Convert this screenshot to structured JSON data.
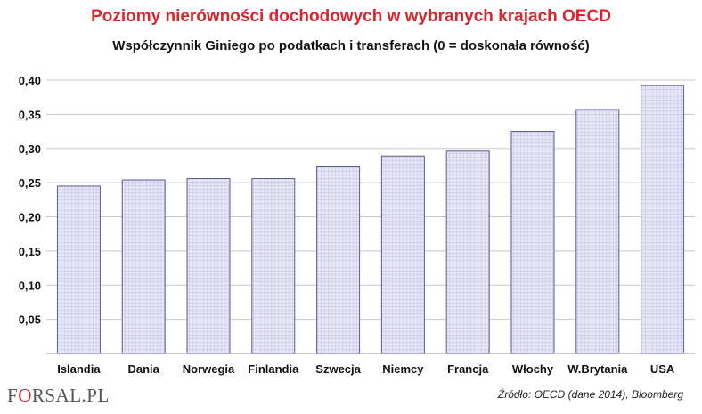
{
  "header": {
    "title": "Poziomy nierówności dochodowych w wybranych krajach OECD",
    "subtitle": "Współczynnik Giniego po podatkach i transferach (0 = doskonała równość)"
  },
  "footer": {
    "logo_prefix": "F",
    "logo_o": "O",
    "logo_suffix": "RSAL.PL",
    "source": "Źródło:  OECD (dane 2014), Bloomberg"
  },
  "colors": {
    "title": "#d9262c",
    "bar_fill": "#e6e6f7",
    "bar_stroke": "#5a5a8c",
    "bar_grid": "#b4b4dc",
    "gridline": "#c8c8c8"
  },
  "chart_data": {
    "type": "bar",
    "title": "Poziomy nierówności dochodowych w wybranych krajach OECD",
    "subtitle": "Współczynnik Giniego po podatkach i transferach (0 = doskonała równość)",
    "categories": [
      "Islandia",
      "Dania",
      "Norwegia",
      "Finlandia",
      "Szwecja",
      "Niemcy",
      "Francja",
      "Włochy",
      "W.Brytania",
      "USA"
    ],
    "values": [
      0.245,
      0.254,
      0.256,
      0.256,
      0.273,
      0.289,
      0.296,
      0.325,
      0.357,
      0.392
    ],
    "ylim": [
      0,
      0.4
    ],
    "yticks": [
      0.05,
      0.1,
      0.15,
      0.2,
      0.25,
      0.3,
      0.35,
      0.4
    ],
    "ytick_labels": [
      "0,05",
      "0,10",
      "0,15",
      "0,20",
      "0,25",
      "0,30",
      "0,35",
      "0,40"
    ],
    "grid": true,
    "legend": "none"
  }
}
